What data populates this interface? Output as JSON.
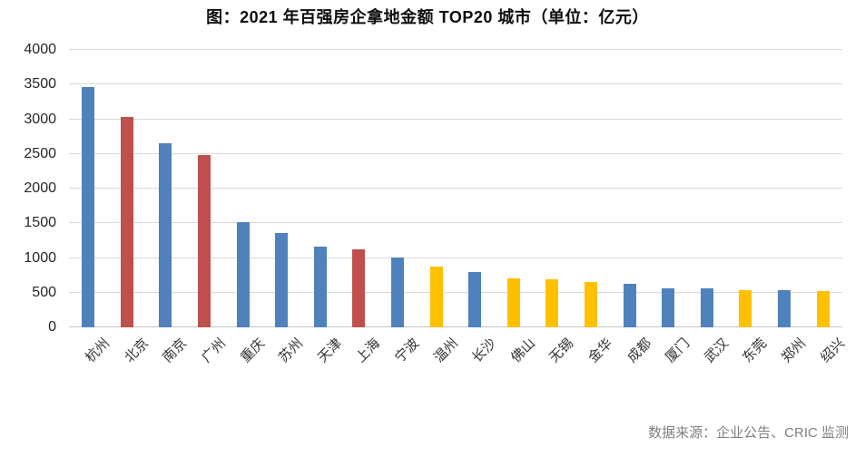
{
  "title": "图：2021 年百强房企拿地金额 TOP20 城市（单位：亿元）",
  "source": "数据来源：企业公告、CRIC 监测",
  "chart_data": {
    "type": "bar",
    "title": "图：2021 年百强房企拿地金额 TOP20 城市（单位：亿元）",
    "unit": "亿元",
    "categories": [
      "杭州",
      "北京",
      "南京",
      "广州",
      "重庆",
      "苏州",
      "天津",
      "上海",
      "宁波",
      "温州",
      "长沙",
      "佛山",
      "无锡",
      "金华",
      "成都",
      "厦门",
      "武汉",
      "东莞",
      "郑州",
      "绍兴"
    ],
    "values": [
      3460,
      3030,
      2655,
      2490,
      1520,
      1360,
      1170,
      1120,
      1010,
      875,
      800,
      705,
      695,
      655,
      625,
      565,
      560,
      535,
      530,
      520
    ],
    "bar_colors": [
      "blue",
      "red",
      "blue",
      "red",
      "blue",
      "blue",
      "blue",
      "red",
      "blue",
      "yellow",
      "blue",
      "yellow",
      "yellow",
      "yellow",
      "blue",
      "blue",
      "blue",
      "yellow",
      "blue",
      "yellow"
    ],
    "palette": {
      "blue": "#4F81BD",
      "red": "#C0504D",
      "yellow": "#FFC000"
    },
    "gridline_color": "#DADADA",
    "ylim": [
      0,
      4000
    ],
    "yticks": [
      0,
      500,
      1000,
      1500,
      2000,
      2500,
      3000,
      3500,
      4000
    ],
    "xlabel": "",
    "ylabel": "",
    "grid": true,
    "legend": "none",
    "xtick_rotation": 45
  }
}
